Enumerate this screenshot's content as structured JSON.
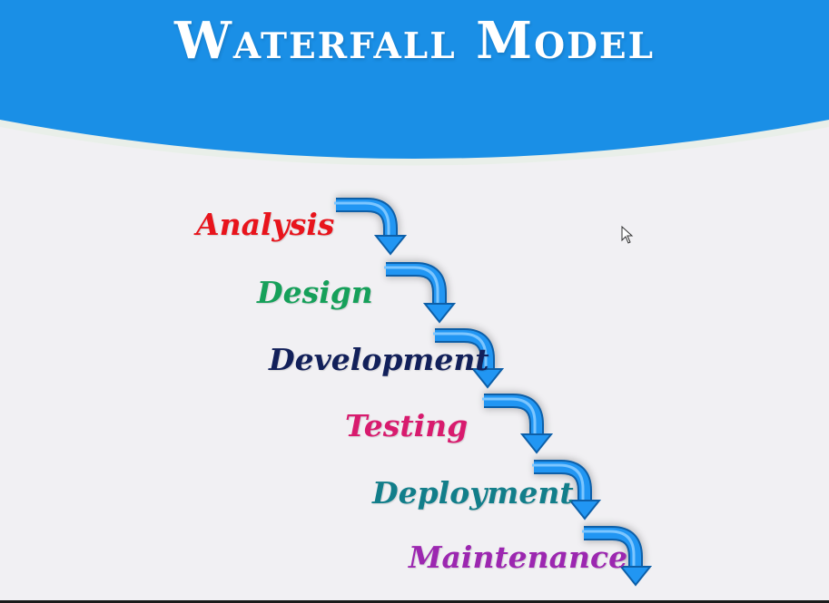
{
  "title": "Waterfall Model",
  "colors": {
    "header_blue": "#1a8fe6",
    "arrow_blue": "#2196f3",
    "background": "#f1f0f3"
  },
  "stages": [
    {
      "label": "Analysis",
      "color": "#e8141c"
    },
    {
      "label": "Design",
      "color": "#16a05a"
    },
    {
      "label": "Development",
      "color": "#12205a"
    },
    {
      "label": "Testing",
      "color": "#d81b6e"
    },
    {
      "label": "Deployment",
      "color": "#127e8a"
    },
    {
      "label": "Maintenance",
      "color": "#9c27b0"
    }
  ],
  "icons": {
    "arrows": "step-down-arrow-icon",
    "cursor": "mouse-pointer-icon"
  }
}
